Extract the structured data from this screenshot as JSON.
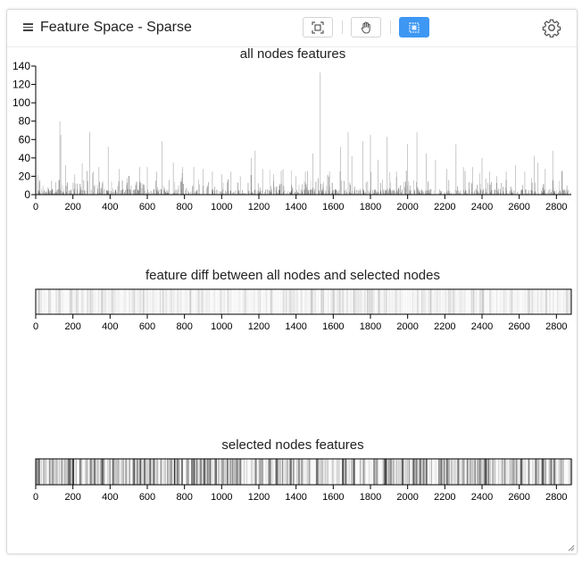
{
  "header": {
    "title": "Feature Space - Sparse",
    "tools": [
      {
        "name": "fit-view-tool",
        "icon": "fit-view-icon",
        "active": false
      },
      {
        "name": "pan-tool",
        "icon": "hand-icon",
        "active": false
      },
      {
        "name": "select-tool",
        "icon": "box-select-icon",
        "active": true
      }
    ],
    "settings_icon": "gear-icon"
  },
  "chart_data": [
    {
      "type": "bar",
      "title": "all nodes features",
      "xlim": [
        0,
        2880
      ],
      "ylim": [
        0,
        140
      ],
      "x_ticks": [
        0,
        200,
        400,
        600,
        800,
        1000,
        1200,
        1400,
        1600,
        1800,
        2000,
        2200,
        2400,
        2600,
        2800
      ],
      "y_ticks": [
        0,
        20,
        40,
        60,
        80,
        100,
        120,
        140
      ],
      "bar_color": "#555555",
      "peaks": [
        {
          "x": 130,
          "y": 80
        },
        {
          "x": 135,
          "y": 65
        },
        {
          "x": 160,
          "y": 32
        },
        {
          "x": 210,
          "y": 22
        },
        {
          "x": 250,
          "y": 34
        },
        {
          "x": 290,
          "y": 68
        },
        {
          "x": 310,
          "y": 25
        },
        {
          "x": 340,
          "y": 30
        },
        {
          "x": 390,
          "y": 52
        },
        {
          "x": 450,
          "y": 28
        },
        {
          "x": 500,
          "y": 20
        },
        {
          "x": 560,
          "y": 30
        },
        {
          "x": 600,
          "y": 30
        },
        {
          "x": 650,
          "y": 25
        },
        {
          "x": 680,
          "y": 58
        },
        {
          "x": 740,
          "y": 35
        },
        {
          "x": 790,
          "y": 30
        },
        {
          "x": 850,
          "y": 30
        },
        {
          "x": 900,
          "y": 28
        },
        {
          "x": 950,
          "y": 25
        },
        {
          "x": 1000,
          "y": 22
        },
        {
          "x": 1050,
          "y": 25
        },
        {
          "x": 1100,
          "y": 20
        },
        {
          "x": 1160,
          "y": 40
        },
        {
          "x": 1180,
          "y": 48
        },
        {
          "x": 1220,
          "y": 28
        },
        {
          "x": 1280,
          "y": 22
        },
        {
          "x": 1330,
          "y": 28
        },
        {
          "x": 1400,
          "y": 20
        },
        {
          "x": 1450,
          "y": 25
        },
        {
          "x": 1490,
          "y": 45
        },
        {
          "x": 1530,
          "y": 133
        },
        {
          "x": 1580,
          "y": 25
        },
        {
          "x": 1640,
          "y": 52
        },
        {
          "x": 1680,
          "y": 68
        },
        {
          "x": 1700,
          "y": 42
        },
        {
          "x": 1760,
          "y": 58
        },
        {
          "x": 1800,
          "y": 65
        },
        {
          "x": 1840,
          "y": 38
        },
        {
          "x": 1890,
          "y": 63
        },
        {
          "x": 1940,
          "y": 25
        },
        {
          "x": 2000,
          "y": 55
        },
        {
          "x": 2050,
          "y": 68
        },
        {
          "x": 2100,
          "y": 45
        },
        {
          "x": 2150,
          "y": 38
        },
        {
          "x": 2210,
          "y": 28
        },
        {
          "x": 2260,
          "y": 55
        },
        {
          "x": 2300,
          "y": 30
        },
        {
          "x": 2350,
          "y": 30
        },
        {
          "x": 2400,
          "y": 40
        },
        {
          "x": 2440,
          "y": 25
        },
        {
          "x": 2480,
          "y": 20
        },
        {
          "x": 2530,
          "y": 25
        },
        {
          "x": 2580,
          "y": 32
        },
        {
          "x": 2630,
          "y": 25
        },
        {
          "x": 2680,
          "y": 42
        },
        {
          "x": 2700,
          "y": 35
        },
        {
          "x": 2740,
          "y": 28
        },
        {
          "x": 2780,
          "y": 48
        },
        {
          "x": 2830,
          "y": 25
        }
      ]
    },
    {
      "type": "heatmap",
      "title": "feature diff between all nodes and selected nodes",
      "xlim": [
        0,
        2880
      ],
      "x_ticks": [
        0,
        200,
        400,
        600,
        800,
        1000,
        1200,
        1400,
        1600,
        1800,
        2000,
        2200,
        2400,
        2600,
        2800
      ],
      "color": "#000000",
      "max_intensity": 0.08
    },
    {
      "type": "heatmap",
      "title": "selected nodes features",
      "xlim": [
        0,
        2880
      ],
      "x_ticks": [
        0,
        200,
        400,
        600,
        800,
        1000,
        1200,
        1400,
        1600,
        1800,
        2000,
        2200,
        2400,
        2600,
        2800
      ],
      "color": "#000000",
      "max_intensity": 0.28
    }
  ]
}
